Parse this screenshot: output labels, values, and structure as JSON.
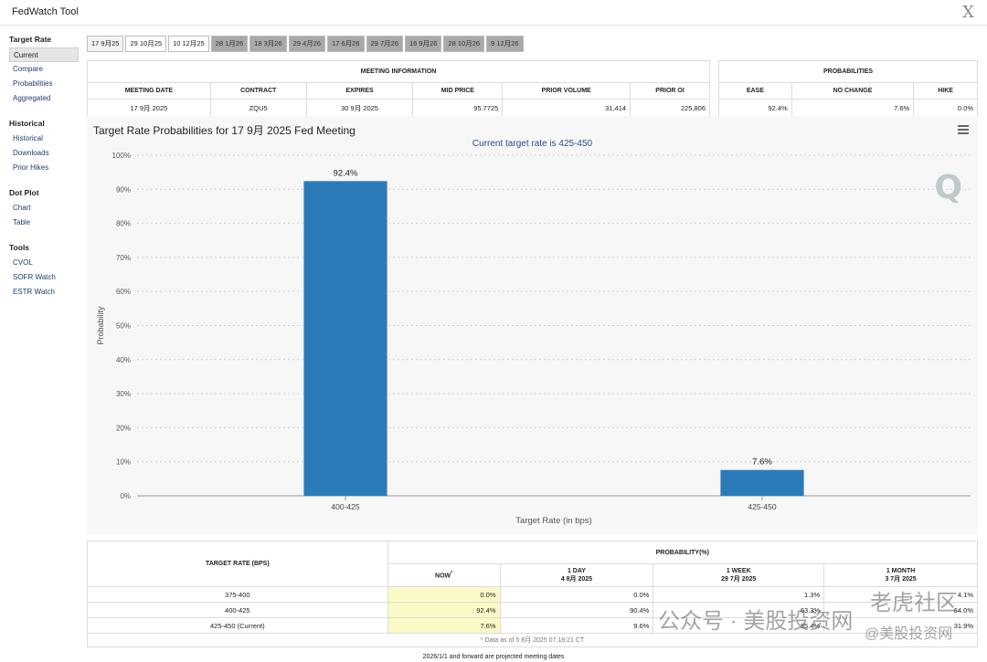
{
  "app": {
    "title": "FedWatch Tool",
    "close_glyph": "X"
  },
  "sidebar": [
    {
      "heading": "Target Rate",
      "items": [
        {
          "label": "Current",
          "active": true
        },
        {
          "label": "Compare"
        },
        {
          "label": "Probabilities"
        },
        {
          "label": "Aggregated"
        }
      ]
    },
    {
      "heading": "Historical",
      "items": [
        {
          "label": "Historical"
        },
        {
          "label": "Downloads"
        },
        {
          "label": "Prior Hikes"
        }
      ]
    },
    {
      "heading": "Dot Plot",
      "items": [
        {
          "label": "Chart"
        },
        {
          "label": "Table"
        }
      ]
    },
    {
      "heading": "Tools",
      "items": [
        {
          "label": "CVOL"
        },
        {
          "label": "SOFR Watch"
        },
        {
          "label": "ESTR Watch"
        }
      ]
    }
  ],
  "tabs": [
    {
      "label": "17 9月25",
      "style": "light"
    },
    {
      "label": "29 10月25",
      "style": "white"
    },
    {
      "label": "10 12月25",
      "style": "white"
    },
    {
      "label": "28 1月26",
      "style": "dark"
    },
    {
      "label": "18 3月26",
      "style": "dark"
    },
    {
      "label": "29 4月26",
      "style": "dark"
    },
    {
      "label": "17 6月26",
      "style": "dark"
    },
    {
      "label": "29 7月26",
      "style": "dark"
    },
    {
      "label": "16 9月26",
      "style": "dark"
    },
    {
      "label": "28 10月26",
      "style": "dark"
    },
    {
      "label": "9 12月26",
      "style": "dark"
    }
  ],
  "meeting_info": {
    "heading": "MEETING INFORMATION",
    "columns": [
      "MEETING DATE",
      "CONTRACT",
      "EXPIRES",
      "MID PRICE",
      "PRIOR VOLUME",
      "PRIOR OI"
    ],
    "values": [
      "17 9月 2025",
      "ZQU5",
      "30 9月 2025",
      "95.7725",
      "31,414",
      "225,806"
    ]
  },
  "probabilities": {
    "heading": "PROBABILITIES",
    "columns": [
      "EASE",
      "NO CHANGE",
      "HIKE"
    ],
    "values": [
      "92.4%",
      "7.6%",
      "0.0%"
    ]
  },
  "chart_data": {
    "type": "bar",
    "title": "Target Rate Probabilities for 17 9月 2025 Fed Meeting",
    "subtitle": "Current target rate is 425-450",
    "categories": [
      "400-425",
      "425-450"
    ],
    "values": [
      92.4,
      7.6
    ],
    "data_labels": [
      "92.4%",
      "7.6%"
    ],
    "xlabel": "Target Rate (in bps)",
    "ylabel": "Probability",
    "ylim": [
      0,
      100
    ],
    "y_ticks": [
      "0%",
      "10%",
      "20%",
      "30%",
      "40%",
      "50%",
      "60%",
      "70%",
      "80%",
      "90%",
      "100%"
    ],
    "grid": true,
    "bar_color": "#2b7bb9",
    "logo_glyph": "Q"
  },
  "rate_table": {
    "target_header": "TARGET RATE (BPS)",
    "prob_header": "PROBABILITY(%)",
    "columns": [
      {
        "line1": "NOW",
        "sup": "*",
        "line2": ""
      },
      {
        "line1": "1 DAY",
        "line2": "4 8月 2025"
      },
      {
        "line1": "1 WEEK",
        "line2": "29 7月 2025"
      },
      {
        "line1": "1 MONTH",
        "line2": "3 7月 2025"
      }
    ],
    "rows": [
      {
        "rate": "375-400",
        "now": "0.0%",
        "day": "0.0%",
        "week": "1.3%",
        "month": "4.1%"
      },
      {
        "rate": "400-425",
        "now": "92.4%",
        "day": "90.4%",
        "week": "63.3%",
        "month": "64.0%"
      },
      {
        "rate": "425-450 (Current)",
        "now": "7.6%",
        "day": "9.6%",
        "week": "35.4%",
        "month": "31.9%"
      }
    ],
    "footnote": "* Data as of 5 8月 2025 07:18:21 CT"
  },
  "projected_note": "2026/1/1 and forward are projected meeting dates",
  "watermark": {
    "line1": "公众号 · 美股投资网",
    "line2": "老虎社区",
    "line3": "@美股投资网"
  }
}
